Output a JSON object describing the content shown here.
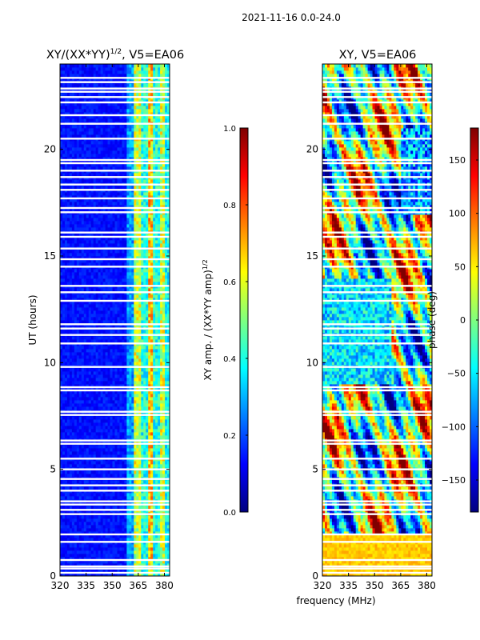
{
  "figure": {
    "suptitle": "2021-11-16 0.0-24.0",
    "shared_xlabel": "frequency (MHz)"
  },
  "colormap": {
    "name": "jet",
    "stops": [
      "#00007f",
      "#0000ff",
      "#007fff",
      "#00ffff",
      "#7fff7f",
      "#ffff00",
      "#ff7f00",
      "#ff0000",
      "#7f0000"
    ]
  },
  "chart_data": [
    {
      "type": "heatmap",
      "title": "XY/(XX*YY)^{1/2}, V5=EA06",
      "title_main": "XY/(XX*YY)",
      "title_sup": "1/2",
      "title_tail": ", V5=EA06",
      "xlabel": "frequency (MHz)",
      "ylabel": "UT (hours)",
      "xlim": [
        320,
        383
      ],
      "ylim": [
        0,
        24
      ],
      "xticks": [
        320,
        335,
        350,
        365,
        380
      ],
      "yticks": [
        0,
        5,
        10,
        15,
        20
      ],
      "colorbar": {
        "label": "XY amp. / (XX*YY amp)^{1/2}",
        "label_main": "XY amp. / (XX*YY amp)",
        "label_sup": "1/2",
        "range": [
          0.0,
          1.0
        ],
        "ticks": [
          "0.0",
          "0.2",
          "0.4",
          "0.6",
          "0.8",
          "1.0"
        ]
      },
      "gaps_hours": [
        0.15,
        0.35,
        0.45,
        0.75,
        1.6,
        1.95,
        2.9,
        3.1,
        3.35,
        3.5,
        4.0,
        4.25,
        4.55,
        5.0,
        5.5,
        6.2,
        6.35,
        7.55,
        7.7,
        8.7,
        8.85,
        9.8,
        10.9,
        11.3,
        11.6,
        11.8,
        12.9,
        13.3,
        13.6,
        14.5,
        14.85,
        15.35,
        15.9,
        16.1,
        17.05,
        17.25,
        17.7,
        18.1,
        18.35,
        18.7,
        19.0,
        19.35,
        19.5,
        20.5,
        21.2,
        21.6,
        22.2,
        22.45,
        22.7,
        22.85,
        23.15,
        23.35
      ]
    },
    {
      "type": "heatmap",
      "title": "XY, V5=EA06",
      "xlabel": "frequency (MHz)",
      "ylabel": "",
      "xlim": [
        320,
        383
      ],
      "ylim": [
        0,
        24
      ],
      "xticks": [
        320,
        335,
        350,
        365,
        380
      ],
      "yticks": [
        0,
        5,
        10,
        15,
        20
      ],
      "colorbar": {
        "label": "phase (deg)",
        "range": [
          -180,
          180
        ],
        "ticks": [
          "−150",
          "−100",
          "−50",
          "0",
          "50",
          "100",
          "150"
        ]
      },
      "gaps_hours": [
        0.15,
        0.35,
        0.45,
        0.75,
        1.6,
        1.95,
        2.9,
        3.1,
        3.35,
        3.5,
        4.0,
        4.25,
        4.55,
        5.0,
        5.5,
        6.2,
        6.35,
        7.55,
        7.7,
        8.7,
        8.85,
        9.8,
        10.9,
        11.3,
        11.6,
        11.8,
        12.9,
        13.3,
        13.6,
        14.5,
        14.85,
        15.35,
        15.9,
        16.1,
        17.05,
        17.25,
        17.7,
        18.1,
        18.35,
        18.7,
        19.0,
        19.35,
        19.5,
        20.5,
        21.2,
        21.6,
        22.2,
        22.45,
        22.7,
        22.85,
        23.15,
        23.35
      ]
    }
  ]
}
